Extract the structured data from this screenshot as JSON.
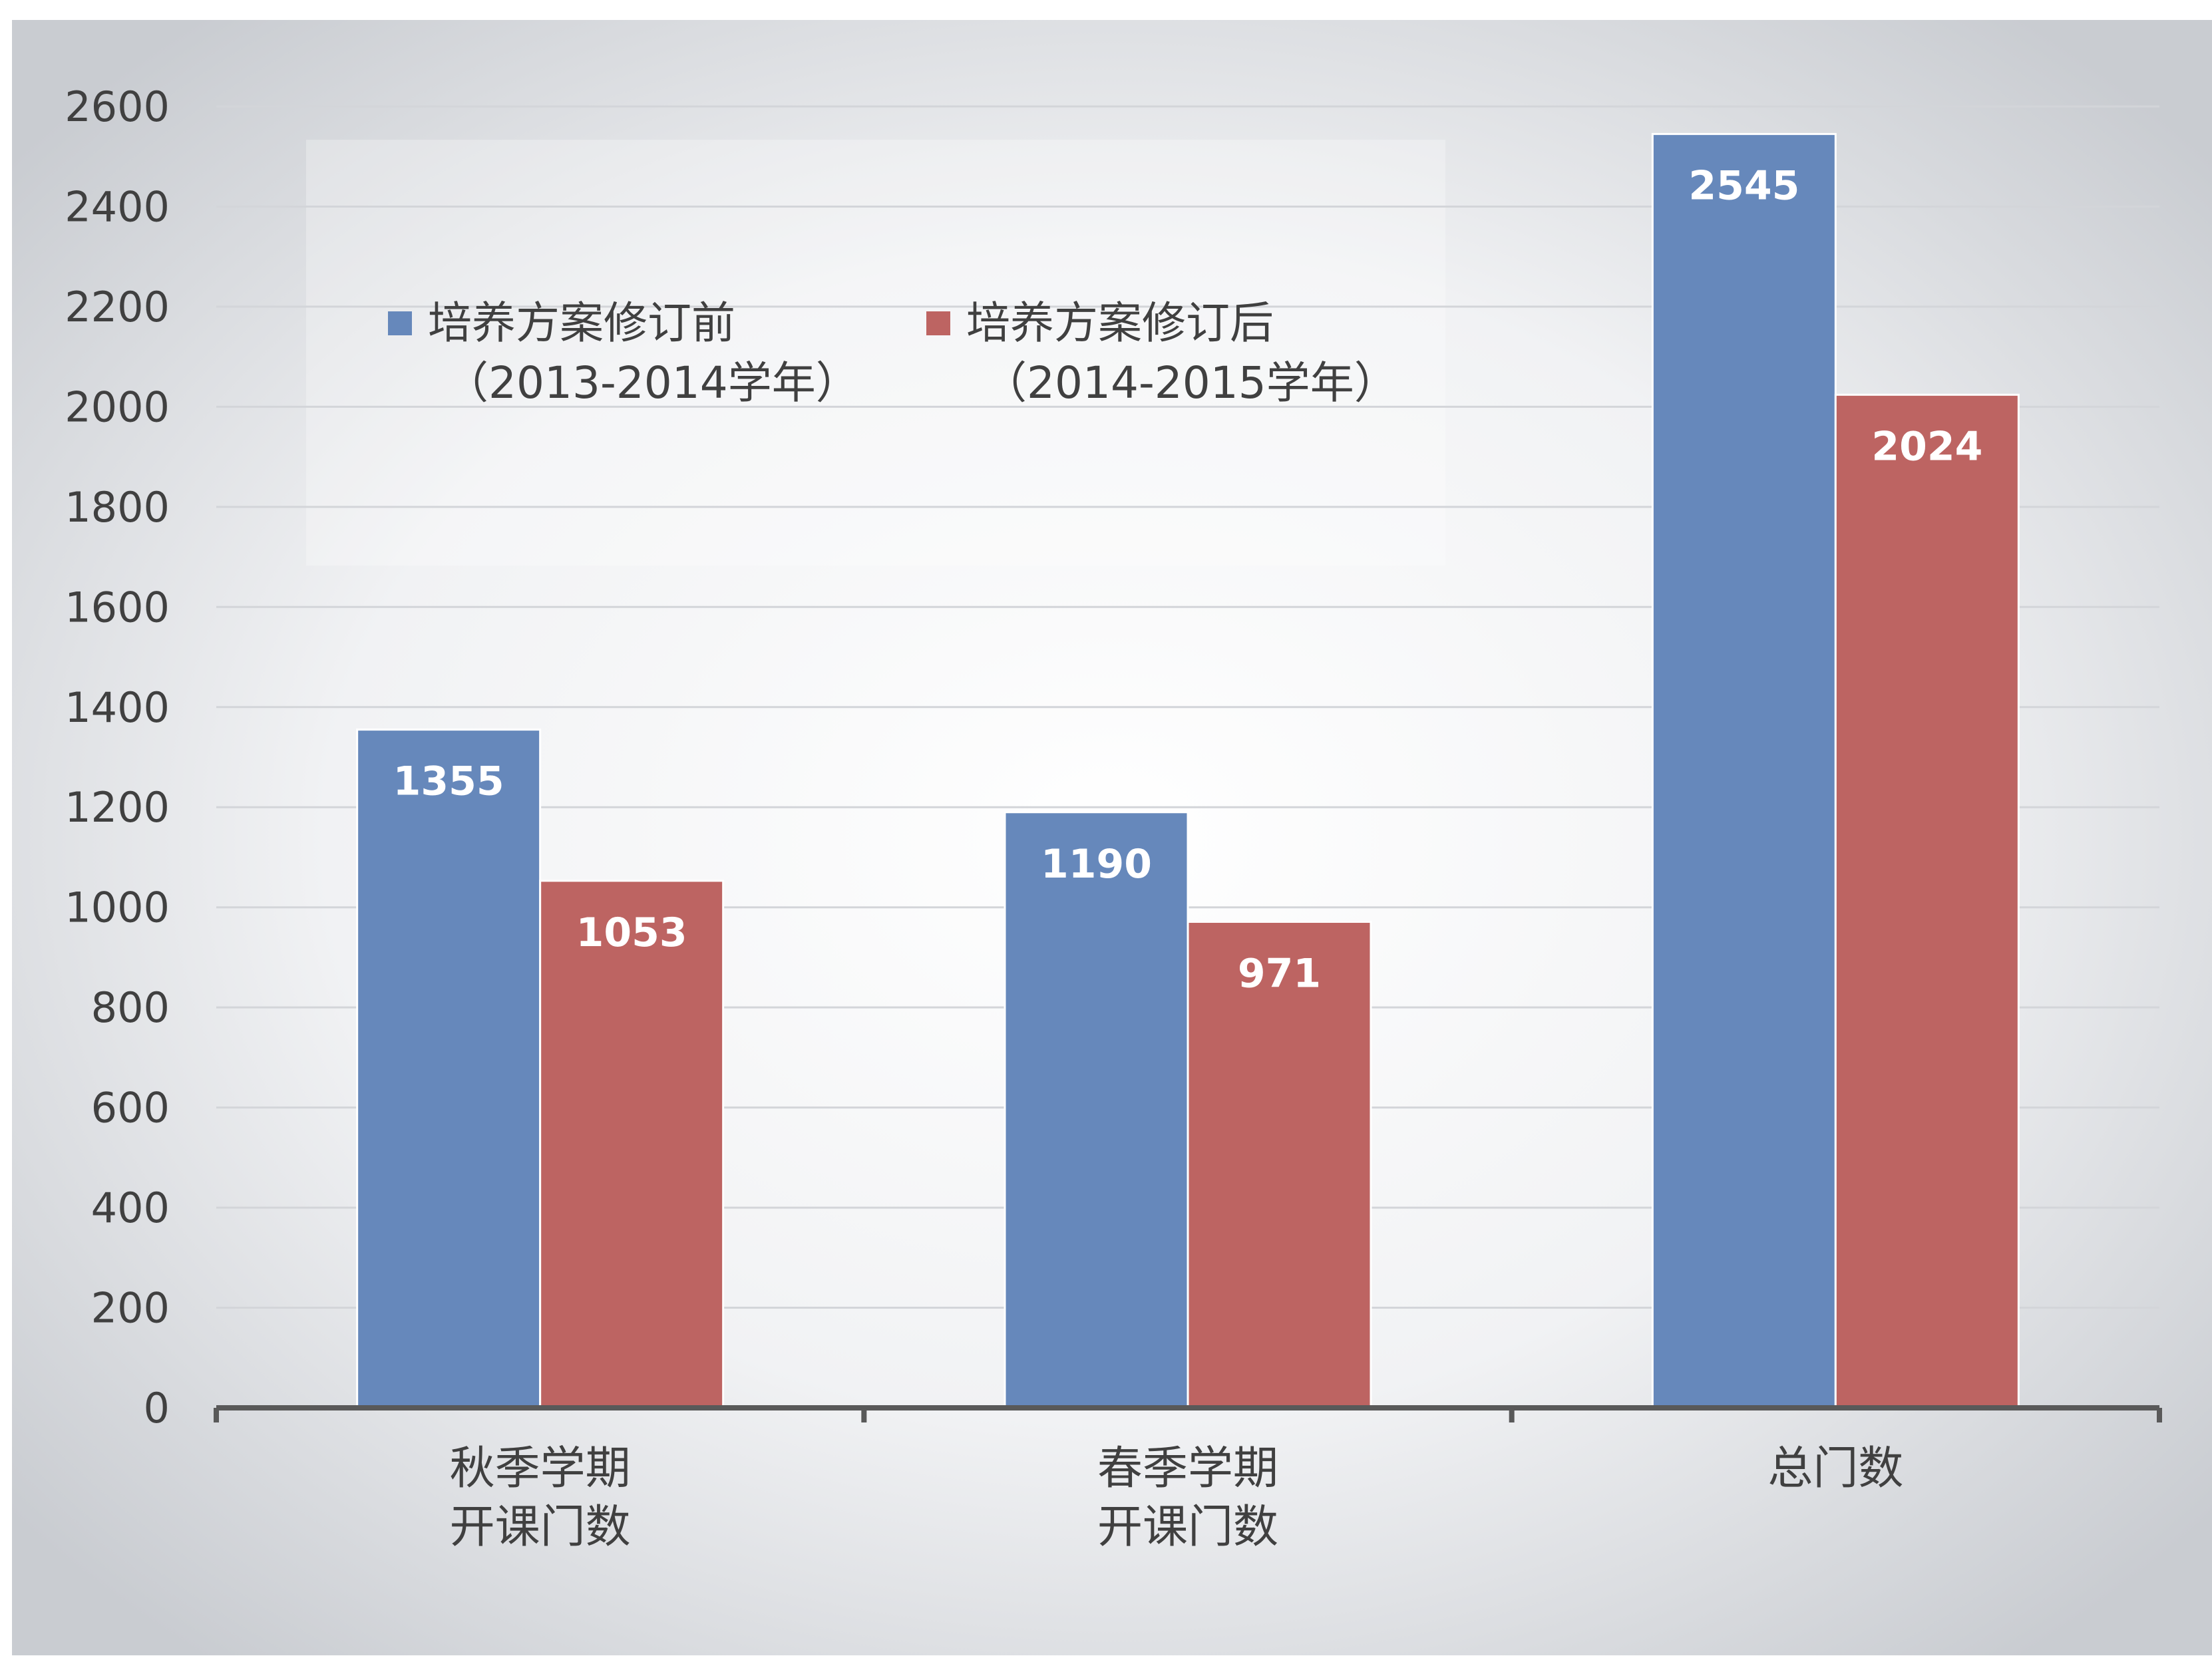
{
  "chart_data": {
    "type": "bar",
    "categories": [
      [
        "秋季学期",
        "开课门数"
      ],
      [
        "春季学期",
        "开课门数"
      ],
      [
        "总门数"
      ]
    ],
    "series": [
      {
        "name": [
          "培养方案修订前",
          "（2013-2014学年）"
        ],
        "values": [
          1355,
          1190,
          2545
        ],
        "color": "#6688bb"
      },
      {
        "name": [
          "培养方案修订后",
          "（2014-2015学年）"
        ],
        "values": [
          1053,
          971,
          2024
        ],
        "color": "#bd6462"
      }
    ],
    "yticks": [
      "0",
      "200",
      "400",
      "600",
      "800",
      "1000",
      "1200",
      "1400",
      "1600",
      "1800",
      "2000",
      "2200",
      "2400",
      "2600"
    ],
    "ylim": [
      0,
      2600
    ],
    "grid": true,
    "legend_position": "top-left",
    "title": "",
    "xlabel": "",
    "ylabel": ""
  }
}
